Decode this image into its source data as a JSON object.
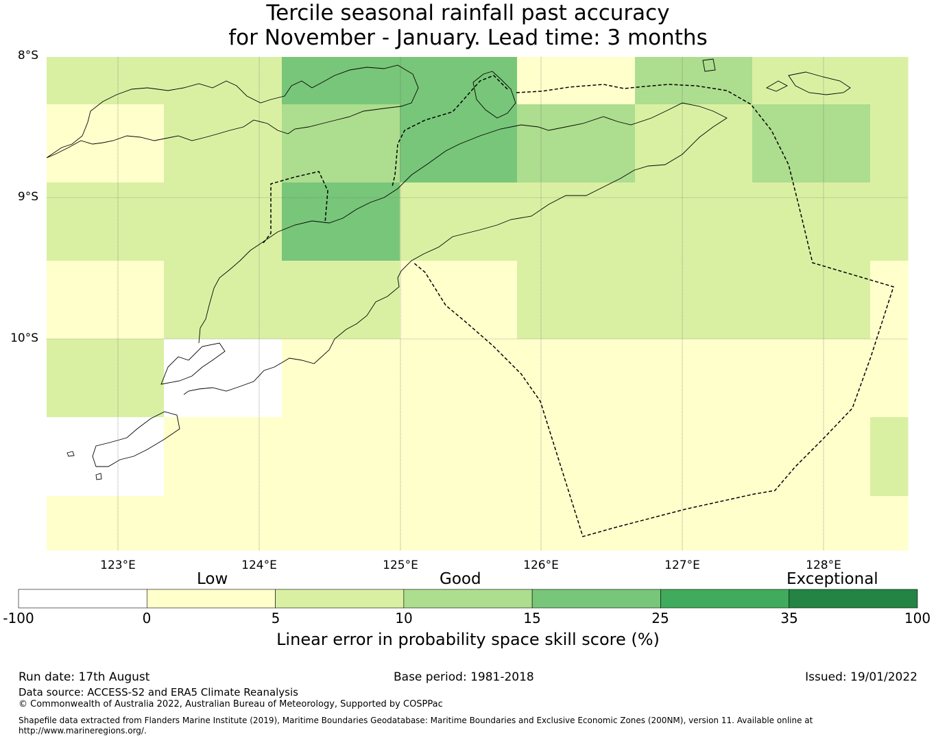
{
  "title_line1": "Tercile seasonal rainfall past accuracy",
  "title_line2": "for November - January. Lead time: 3 months",
  "lat_labels": [
    "8°S",
    "9°S",
    "10°S"
  ],
  "lon_labels": [
    "123°E",
    "124°E",
    "125°E",
    "126°E",
    "127°E",
    "128°E"
  ],
  "colorbar": {
    "categories": [
      "Low",
      "Good",
      "Exceptional"
    ],
    "ticks": [
      "-100",
      "0",
      "5",
      "10",
      "15",
      "25",
      "35",
      "100"
    ],
    "colors": [
      "#ffffff",
      "#ffffcc",
      "#d9f0a3",
      "#addd8e",
      "#78c679",
      "#41ab5d",
      "#238443"
    ],
    "label": "Linear error in probability space skill score (%)"
  },
  "footer": {
    "run_date": "Run date: 17th August",
    "base_period": "Base period: 1981-2018",
    "issued": "Issued: 19/01/2022",
    "data_source": "Data source: ACCESS-S2 and ERA5 Climate Reanalysis",
    "copyright": "© Commonwealth of Australia 2022, Australian Bureau of Meteorology, Supported by COSPPac",
    "shapefile_line1": "Shapefile data extracted from Flanders Marine Institute (2019), Maritime Boundaries Geodatabase: Maritime Boundaries and Exclusive Economic Zones (200NM), version 11. Available online at",
    "shapefile_line2": "http://www.marineregions.org/."
  },
  "map_grid": {
    "cell_colors": [
      [
        "#d9f0a3",
        "#d9f0a3",
        "#78c679",
        "#78c679",
        "#ffffcc",
        "#addd8e",
        "#d9f0a3",
        "#d9f0a3"
      ],
      [
        "#ffffcc",
        "#d9f0a3",
        "#addd8e",
        "#78c679",
        "#addd8e",
        "#d9f0a3",
        "#addd8e",
        "#d9f0a3"
      ],
      [
        "#d9f0a3",
        "#d9f0a3",
        "#78c679",
        "#d9f0a3",
        "#d9f0a3",
        "#d9f0a3",
        "#d9f0a3",
        "#d9f0a3"
      ],
      [
        "#ffffcc",
        "#d9f0a3",
        "#d9f0a3",
        "#ffffcc",
        "#d9f0a3",
        "#d9f0a3",
        "#d9f0a3",
        "#ffffcc"
      ],
      [
        "#d9f0a3",
        "#ffffff",
        "#ffffcc",
        "#ffffcc",
        "#ffffcc",
        "#ffffcc",
        "#ffffcc",
        "#ffffcc"
      ],
      [
        "#ffffff",
        "#ffffcc",
        "#ffffcc",
        "#ffffcc",
        "#ffffcc",
        "#ffffcc",
        "#ffffcc",
        "#d9f0a3"
      ],
      [
        "#ffffcc",
        "#ffffcc",
        "#ffffcc",
        "#ffffcc",
        "#ffffcc",
        "#ffffcc",
        "#ffffcc",
        "#ffffcc"
      ]
    ]
  }
}
